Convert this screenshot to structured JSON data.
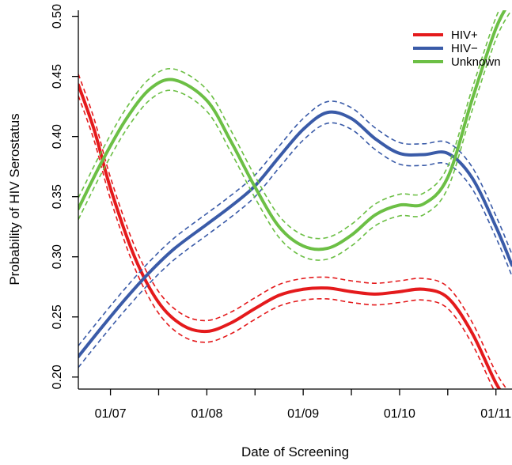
{
  "chart_data": {
    "type": "line",
    "title": "",
    "xlabel": "Date of Screening",
    "ylabel": "Probability of HIV Serostatus",
    "xlim": [
      "2006-09",
      "2011-03"
    ],
    "ylim": [
      0.19,
      0.505
    ],
    "x_ticks": [
      {
        "value": "2007-01",
        "label": "01/07"
      },
      {
        "value": "2008-01",
        "label": "01/08"
      },
      {
        "value": "2009-01",
        "label": "01/09"
      },
      {
        "value": "2010-01",
        "label": "01/10"
      },
      {
        "value": "2011-01",
        "label": "01/11"
      }
    ],
    "y_ticks": [
      {
        "value": 0.2,
        "label": "0.20"
      },
      {
        "value": 0.25,
        "label": "0.25"
      },
      {
        "value": 0.3,
        "label": "0.30"
      },
      {
        "value": 0.35,
        "label": "0.35"
      },
      {
        "value": 0.4,
        "label": "0.40"
      },
      {
        "value": 0.45,
        "label": "0.45"
      },
      {
        "value": 0.5,
        "label": "0.50"
      }
    ],
    "grid": false,
    "legend_position": "top-right",
    "ci_band_half_width": 0.009,
    "series": [
      {
        "name": "HIV+",
        "color": "#e41a1c",
        "points": [
          [
            "2006-09",
            0.443
          ],
          [
            "2006-11",
            0.405
          ],
          [
            "2007-01",
            0.357
          ],
          [
            "2007-04",
            0.3
          ],
          [
            "2007-07",
            0.262
          ],
          [
            "2007-10",
            0.243
          ],
          [
            "2008-01",
            0.238
          ],
          [
            "2008-04",
            0.245
          ],
          [
            "2008-07",
            0.257
          ],
          [
            "2008-10",
            0.268
          ],
          [
            "2009-01",
            0.273
          ],
          [
            "2009-04",
            0.274
          ],
          [
            "2009-07",
            0.271
          ],
          [
            "2009-10",
            0.269
          ],
          [
            "2010-01",
            0.271
          ],
          [
            "2010-04",
            0.273
          ],
          [
            "2010-07",
            0.266
          ],
          [
            "2010-10",
            0.237
          ],
          [
            "2011-01",
            0.195
          ],
          [
            "2011-03",
            0.175
          ]
        ]
      },
      {
        "name": "HIV−",
        "color": "#3a5ba8",
        "points": [
          [
            "2006-09",
            0.217
          ],
          [
            "2006-12",
            0.242
          ],
          [
            "2007-03",
            0.266
          ],
          [
            "2007-06",
            0.288
          ],
          [
            "2007-09",
            0.307
          ],
          [
            "2008-01",
            0.327
          ],
          [
            "2008-04",
            0.342
          ],
          [
            "2008-07",
            0.359
          ],
          [
            "2008-10",
            0.383
          ],
          [
            "2009-01",
            0.406
          ],
          [
            "2009-04",
            0.42
          ],
          [
            "2009-07",
            0.415
          ],
          [
            "2009-10",
            0.398
          ],
          [
            "2010-01",
            0.386
          ],
          [
            "2010-04",
            0.385
          ],
          [
            "2010-07",
            0.386
          ],
          [
            "2010-10",
            0.366
          ],
          [
            "2011-01",
            0.325
          ],
          [
            "2011-03",
            0.293
          ]
        ]
      },
      {
        "name": "Unknown",
        "color": "#6cbf45",
        "points": [
          [
            "2006-09",
            0.34
          ],
          [
            "2006-12",
            0.38
          ],
          [
            "2007-03",
            0.415
          ],
          [
            "2007-06",
            0.44
          ],
          [
            "2007-09",
            0.447
          ],
          [
            "2008-01",
            0.43
          ],
          [
            "2008-04",
            0.396
          ],
          [
            "2008-07",
            0.358
          ],
          [
            "2008-10",
            0.325
          ],
          [
            "2009-01",
            0.309
          ],
          [
            "2009-04",
            0.307
          ],
          [
            "2009-07",
            0.318
          ],
          [
            "2009-10",
            0.335
          ],
          [
            "2010-01",
            0.343
          ],
          [
            "2010-04",
            0.344
          ],
          [
            "2010-07",
            0.366
          ],
          [
            "2010-10",
            0.43
          ],
          [
            "2011-01",
            0.49
          ],
          [
            "2011-03",
            0.515
          ]
        ]
      }
    ]
  }
}
